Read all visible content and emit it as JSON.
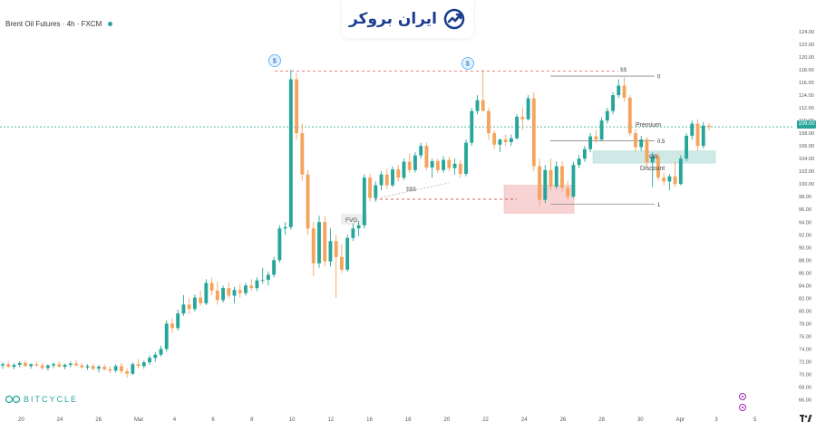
{
  "header": {
    "title": "Brent Oil Futures · 4h · FXCM"
  },
  "brand": {
    "name": "ایران بروکر",
    "color": "#1a3d8f"
  },
  "watermark": {
    "text": "BITCYCLE"
  },
  "colors": {
    "up": "#26a69a",
    "down": "#f5a45d",
    "liquidity_line": "#e57373",
    "fib_line": "#888888",
    "ob_zone": "#cfe9e6",
    "fvg_zone": "#f8d3d3",
    "current_price_line": "#26a69a"
  },
  "current_price": {
    "value": 109.0,
    "label": "109.00"
  },
  "chart_data": {
    "type": "candlestick",
    "title": "Brent Oil Futures · 4h · FXCM",
    "x_ticks": [
      "20",
      "24",
      "26",
      "Mar",
      "4",
      "6",
      "8",
      "10",
      "12",
      "16",
      "18",
      "20",
      "22",
      "24",
      "26",
      "28",
      "30",
      "Apr",
      "3",
      "5"
    ],
    "y_ticks": [
      "66.00",
      "68.00",
      "70.00",
      "72.00",
      "74.00",
      "76.00",
      "78.00",
      "80.00",
      "82.00",
      "84.00",
      "86.00",
      "88.00",
      "90.00",
      "92.00",
      "94.00",
      "96.00",
      "98.00",
      "100.00",
      "102.00",
      "104.00",
      "106.00",
      "108.00",
      "110.00",
      "112.00",
      "114.00",
      "116.00",
      "118.00",
      "120.00",
      "122.00",
      "124.00"
    ],
    "ylim": [
      64.5,
      125.0
    ],
    "grid": false,
    "annotations": {
      "fvg_label": "FVG",
      "sss_label": "$$$",
      "ss_label": "$$",
      "dollar_marker": "$",
      "premium_label": "Premium",
      "discount_label": "Discount",
      "ob_label": "OB",
      "fib_levels": [
        {
          "label": "0",
          "price": 117.0
        },
        {
          "label": "0.5",
          "price": 106.8
        },
        {
          "label": "1",
          "price": 96.8
        }
      ],
      "liquidity_high": 117.8,
      "liquidity_low": 97.6,
      "ob_zone": {
        "low": 103.3,
        "high": 105.2
      },
      "fvg_zone": {
        "low": 95.4,
        "high": 99.8
      }
    },
    "series": [
      {
        "name": "",
        "values": [
          {
            "o": 71.4,
            "h": 71.9,
            "l": 70.9,
            "c": 71.6
          },
          {
            "o": 71.6,
            "h": 72.0,
            "l": 71.0,
            "c": 71.2
          },
          {
            "o": 71.2,
            "h": 71.8,
            "l": 70.8,
            "c": 71.5
          },
          {
            "o": 71.5,
            "h": 72.1,
            "l": 71.1,
            "c": 71.8
          },
          {
            "o": 71.8,
            "h": 72.2,
            "l": 71.2,
            "c": 71.3
          },
          {
            "o": 71.3,
            "h": 71.7,
            "l": 70.9,
            "c": 71.6
          },
          {
            "o": 71.6,
            "h": 72.0,
            "l": 71.2,
            "c": 71.4
          },
          {
            "o": 71.4,
            "h": 71.8,
            "l": 70.7,
            "c": 71.0
          },
          {
            "o": 71.0,
            "h": 71.6,
            "l": 70.6,
            "c": 71.4
          },
          {
            "o": 71.4,
            "h": 71.9,
            "l": 71.0,
            "c": 71.6
          },
          {
            "o": 71.6,
            "h": 72.0,
            "l": 71.1,
            "c": 71.2
          },
          {
            "o": 71.2,
            "h": 71.7,
            "l": 70.8,
            "c": 71.5
          },
          {
            "o": 71.5,
            "h": 72.0,
            "l": 71.1,
            "c": 71.7
          },
          {
            "o": 71.7,
            "h": 72.2,
            "l": 71.3,
            "c": 71.4
          },
          {
            "o": 71.4,
            "h": 71.8,
            "l": 70.9,
            "c": 71.1
          },
          {
            "o": 71.1,
            "h": 71.6,
            "l": 70.7,
            "c": 71.3
          },
          {
            "o": 71.3,
            "h": 71.7,
            "l": 70.6,
            "c": 70.9
          },
          {
            "o": 70.9,
            "h": 71.5,
            "l": 70.3,
            "c": 71.2
          },
          {
            "o": 71.2,
            "h": 71.6,
            "l": 70.6,
            "c": 70.8
          },
          {
            "o": 70.8,
            "h": 71.3,
            "l": 70.2,
            "c": 70.6
          },
          {
            "o": 70.6,
            "h": 71.6,
            "l": 70.3,
            "c": 71.3
          },
          {
            "o": 71.3,
            "h": 71.8,
            "l": 70.1,
            "c": 70.5
          },
          {
            "o": 70.5,
            "h": 70.9,
            "l": 69.5,
            "c": 70.1
          },
          {
            "o": 70.1,
            "h": 71.9,
            "l": 69.9,
            "c": 71.6
          },
          {
            "o": 71.6,
            "h": 72.4,
            "l": 71.0,
            "c": 71.3
          },
          {
            "o": 71.3,
            "h": 72.2,
            "l": 70.9,
            "c": 71.9
          },
          {
            "o": 71.9,
            "h": 73.0,
            "l": 71.5,
            "c": 72.6
          },
          {
            "o": 72.6,
            "h": 73.5,
            "l": 72.0,
            "c": 73.1
          },
          {
            "o": 73.1,
            "h": 74.5,
            "l": 72.8,
            "c": 74.0
          },
          {
            "o": 74.0,
            "h": 78.5,
            "l": 73.6,
            "c": 78.0
          },
          {
            "o": 78.0,
            "h": 78.8,
            "l": 76.5,
            "c": 77.3
          },
          {
            "o": 77.3,
            "h": 80.2,
            "l": 76.9,
            "c": 79.6
          },
          {
            "o": 79.6,
            "h": 82.5,
            "l": 79.2,
            "c": 81.0
          },
          {
            "o": 81.0,
            "h": 82.0,
            "l": 79.5,
            "c": 80.3
          },
          {
            "o": 80.3,
            "h": 82.6,
            "l": 79.9,
            "c": 82.1
          },
          {
            "o": 82.1,
            "h": 83.2,
            "l": 80.8,
            "c": 81.2
          },
          {
            "o": 81.2,
            "h": 85.0,
            "l": 80.9,
            "c": 84.4
          },
          {
            "o": 84.4,
            "h": 85.2,
            "l": 82.5,
            "c": 83.2
          },
          {
            "o": 83.2,
            "h": 84.6,
            "l": 81.0,
            "c": 81.7
          },
          {
            "o": 81.7,
            "h": 84.0,
            "l": 81.3,
            "c": 83.6
          },
          {
            "o": 83.6,
            "h": 84.5,
            "l": 82.0,
            "c": 82.4
          },
          {
            "o": 82.4,
            "h": 83.8,
            "l": 81.2,
            "c": 83.3
          },
          {
            "o": 83.3,
            "h": 84.2,
            "l": 82.1,
            "c": 82.8
          },
          {
            "o": 82.8,
            "h": 84.4,
            "l": 82.4,
            "c": 84.0
          },
          {
            "o": 84.0,
            "h": 85.0,
            "l": 83.2,
            "c": 83.6
          },
          {
            "o": 83.6,
            "h": 85.3,
            "l": 83.1,
            "c": 84.8
          },
          {
            "o": 84.8,
            "h": 86.8,
            "l": 84.3,
            "c": 84.9
          },
          {
            "o": 84.9,
            "h": 86.2,
            "l": 84.0,
            "c": 85.7
          },
          {
            "o": 85.7,
            "h": 88.5,
            "l": 85.3,
            "c": 88.0
          },
          {
            "o": 88.0,
            "h": 93.5,
            "l": 87.6,
            "c": 93.0
          },
          {
            "o": 93.0,
            "h": 94.0,
            "l": 92.0,
            "c": 93.2
          },
          {
            "o": 93.2,
            "h": 118.0,
            "l": 92.8,
            "c": 116.5
          },
          {
            "o": 116.5,
            "h": 117.5,
            "l": 107.0,
            "c": 108.0
          },
          {
            "o": 108.0,
            "h": 109.5,
            "l": 100.5,
            "c": 101.5
          },
          {
            "o": 101.5,
            "h": 102.2,
            "l": 92.0,
            "c": 93.0
          },
          {
            "o": 93.0,
            "h": 94.0,
            "l": 85.5,
            "c": 87.5
          },
          {
            "o": 87.5,
            "h": 95.0,
            "l": 86.8,
            "c": 94.0
          },
          {
            "o": 94.0,
            "h": 95.0,
            "l": 87.0,
            "c": 87.8
          },
          {
            "o": 87.8,
            "h": 93.0,
            "l": 87.0,
            "c": 91.0
          },
          {
            "o": 91.0,
            "h": 92.0,
            "l": 82.0,
            "c": 88.5
          },
          {
            "o": 88.5,
            "h": 90.5,
            "l": 86.0,
            "c": 86.5
          },
          {
            "o": 86.5,
            "h": 92.0,
            "l": 86.2,
            "c": 91.5
          },
          {
            "o": 91.5,
            "h": 93.8,
            "l": 91.0,
            "c": 93.0
          },
          {
            "o": 93.0,
            "h": 94.2,
            "l": 91.8,
            "c": 93.5
          },
          {
            "o": 93.5,
            "h": 101.5,
            "l": 93.0,
            "c": 101.0
          },
          {
            "o": 101.0,
            "h": 101.6,
            "l": 97.2,
            "c": 97.8
          },
          {
            "o": 97.8,
            "h": 100.4,
            "l": 97.2,
            "c": 99.8
          },
          {
            "o": 99.8,
            "h": 102.0,
            "l": 99.0,
            "c": 101.5
          },
          {
            "o": 101.5,
            "h": 102.4,
            "l": 99.2,
            "c": 99.8
          },
          {
            "o": 99.8,
            "h": 102.8,
            "l": 99.5,
            "c": 102.3
          },
          {
            "o": 102.3,
            "h": 103.0,
            "l": 100.4,
            "c": 101.0
          },
          {
            "o": 101.0,
            "h": 104.0,
            "l": 100.6,
            "c": 103.5
          },
          {
            "o": 103.5,
            "h": 104.8,
            "l": 101.8,
            "c": 102.2
          },
          {
            "o": 102.2,
            "h": 105.0,
            "l": 101.8,
            "c": 104.5
          },
          {
            "o": 104.5,
            "h": 106.5,
            "l": 104.0,
            "c": 106.0
          },
          {
            "o": 106.0,
            "h": 106.5,
            "l": 102.2,
            "c": 102.6
          },
          {
            "o": 102.6,
            "h": 104.0,
            "l": 101.0,
            "c": 103.6
          },
          {
            "o": 103.6,
            "h": 104.0,
            "l": 101.7,
            "c": 102.2
          },
          {
            "o": 102.2,
            "h": 104.4,
            "l": 101.8,
            "c": 103.8
          },
          {
            "o": 103.8,
            "h": 104.3,
            "l": 102.0,
            "c": 102.5
          },
          {
            "o": 102.5,
            "h": 104.0,
            "l": 101.5,
            "c": 103.2
          },
          {
            "o": 103.2,
            "h": 103.8,
            "l": 101.0,
            "c": 101.6
          },
          {
            "o": 101.6,
            "h": 107.0,
            "l": 101.2,
            "c": 106.5
          },
          {
            "o": 106.5,
            "h": 112.0,
            "l": 106.0,
            "c": 111.5
          },
          {
            "o": 111.5,
            "h": 114.0,
            "l": 111.0,
            "c": 113.2
          },
          {
            "o": 113.2,
            "h": 118.0,
            "l": 112.0,
            "c": 111.5
          },
          {
            "o": 111.5,
            "h": 112.0,
            "l": 107.0,
            "c": 108.0
          },
          {
            "o": 108.0,
            "h": 108.4,
            "l": 105.5,
            "c": 106.2
          },
          {
            "o": 106.2,
            "h": 107.2,
            "l": 105.0,
            "c": 107.0
          },
          {
            "o": 107.0,
            "h": 107.8,
            "l": 106.0,
            "c": 106.6
          },
          {
            "o": 106.6,
            "h": 107.8,
            "l": 106.0,
            "c": 107.2
          },
          {
            "o": 107.2,
            "h": 111.0,
            "l": 107.0,
            "c": 110.6
          },
          {
            "o": 110.6,
            "h": 112.0,
            "l": 108.5,
            "c": 110.2
          },
          {
            "o": 110.2,
            "h": 114.0,
            "l": 110.0,
            "c": 113.5
          },
          {
            "o": 113.5,
            "h": 114.5,
            "l": 102.0,
            "c": 102.8
          },
          {
            "o": 102.8,
            "h": 104.0,
            "l": 96.5,
            "c": 97.5
          },
          {
            "o": 97.5,
            "h": 103.0,
            "l": 97.0,
            "c": 102.2
          },
          {
            "o": 102.2,
            "h": 104.0,
            "l": 99.0,
            "c": 99.6
          },
          {
            "o": 99.6,
            "h": 103.6,
            "l": 99.2,
            "c": 102.8
          },
          {
            "o": 102.8,
            "h": 103.6,
            "l": 98.8,
            "c": 99.4
          },
          {
            "o": 99.4,
            "h": 100.5,
            "l": 97.5,
            "c": 98.0
          },
          {
            "o": 98.0,
            "h": 103.5,
            "l": 97.8,
            "c": 103.0
          },
          {
            "o": 103.0,
            "h": 104.6,
            "l": 102.5,
            "c": 104.0
          },
          {
            "o": 104.0,
            "h": 106.0,
            "l": 103.5,
            "c": 105.5
          },
          {
            "o": 105.5,
            "h": 108.0,
            "l": 105.0,
            "c": 107.5
          },
          {
            "o": 107.5,
            "h": 108.5,
            "l": 106.5,
            "c": 107.0
          },
          {
            "o": 107.0,
            "h": 110.5,
            "l": 106.8,
            "c": 110.0
          },
          {
            "o": 110.0,
            "h": 112.0,
            "l": 109.5,
            "c": 111.5
          },
          {
            "o": 111.5,
            "h": 114.5,
            "l": 111.0,
            "c": 114.0
          },
          {
            "o": 114.0,
            "h": 116.5,
            "l": 113.5,
            "c": 115.5
          },
          {
            "o": 115.5,
            "h": 116.8,
            "l": 113.0,
            "c": 113.6
          },
          {
            "o": 113.6,
            "h": 114.0,
            "l": 107.5,
            "c": 108.0
          },
          {
            "o": 108.0,
            "h": 108.6,
            "l": 105.0,
            "c": 105.8
          },
          {
            "o": 105.8,
            "h": 107.6,
            "l": 105.2,
            "c": 107.0
          },
          {
            "o": 107.0,
            "h": 107.4,
            "l": 102.5,
            "c": 103.4
          },
          {
            "o": 103.4,
            "h": 105.0,
            "l": 99.5,
            "c": 104.4
          },
          {
            "o": 104.4,
            "h": 105.0,
            "l": 100.5,
            "c": 101.0
          },
          {
            "o": 101.0,
            "h": 101.8,
            "l": 99.8,
            "c": 100.4
          },
          {
            "o": 100.4,
            "h": 101.6,
            "l": 99.0,
            "c": 101.2
          },
          {
            "o": 101.2,
            "h": 103.5,
            "l": 99.5,
            "c": 100.0
          },
          {
            "o": 100.0,
            "h": 104.5,
            "l": 99.8,
            "c": 104.0
          },
          {
            "o": 104.0,
            "h": 108.0,
            "l": 103.6,
            "c": 107.6
          },
          {
            "o": 107.6,
            "h": 110.0,
            "l": 107.0,
            "c": 109.5
          },
          {
            "o": 109.5,
            "h": 110.2,
            "l": 105.2,
            "c": 106.0
          },
          {
            "o": 106.0,
            "h": 109.8,
            "l": 105.6,
            "c": 109.2
          },
          {
            "o": 109.2,
            "h": 109.6,
            "l": 108.4,
            "c": 109.0
          }
        ]
      }
    ]
  }
}
